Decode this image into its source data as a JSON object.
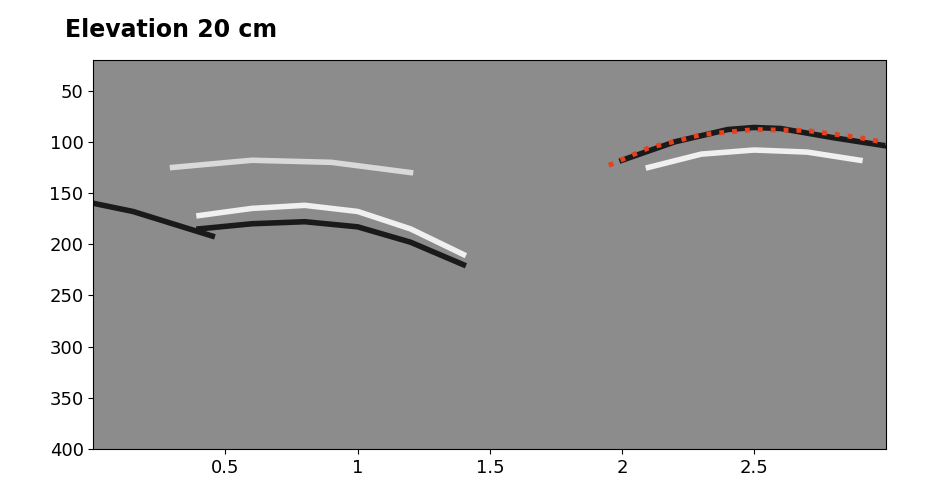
{
  "chart_data": {
    "type": "line",
    "title": "Elevation 20 cm",
    "xlim": [
      0,
      3.0
    ],
    "xticks": [
      0.5,
      1,
      1.5,
      2,
      2.5
    ],
    "ylim": [
      400,
      20
    ],
    "yticks": [
      50,
      100,
      150,
      200,
      250,
      300,
      350,
      400
    ],
    "color": "#8c8c8c",
    "series": [
      {
        "color": "#1a1a1a",
        "line_style": "solid",
        "x": [
          2.0,
          2.2,
          2.4,
          2.5,
          2.6,
          2.8,
          3.0
        ],
        "values": [
          118,
          100,
          88,
          86,
          87,
          96,
          104
        ]
      },
      {
        "color": "#f0f0f0",
        "line_style": "solid",
        "x": [
          2.1,
          2.3,
          2.5,
          2.7,
          2.9
        ],
        "values": [
          125,
          112,
          108,
          110,
          118
        ]
      },
      {
        "color": "#f0f0f0",
        "line_style": "solid",
        "x": [
          0.4,
          0.6,
          0.8,
          1.0,
          1.2,
          1.4
        ],
        "values": [
          172,
          165,
          162,
          168,
          185,
          210
        ]
      },
      {
        "color": "#1a1a1a",
        "line_style": "solid",
        "x": [
          0.4,
          0.6,
          0.8,
          1.0,
          1.2,
          1.4
        ],
        "values": [
          185,
          180,
          178,
          183,
          198,
          220
        ]
      },
      {
        "color": "#1a1a1a",
        "line_style": "solid",
        "x": [
          0.0,
          0.15,
          0.3,
          0.45
        ],
        "values": [
          160,
          168,
          180,
          192
        ]
      },
      {
        "color": "#d9d9d9",
        "line_style": "solid",
        "x": [
          0.3,
          0.6,
          0.9,
          1.2
        ],
        "values": [
          125,
          118,
          120,
          130
        ]
      },
      {
        "color": "#e8401c",
        "line_style": "dotted",
        "x": [
          1.95,
          2.1,
          2.3,
          2.5,
          2.7,
          2.9,
          3.0
        ],
        "values": [
          123,
          106,
          93,
          88,
          89,
          96,
          101
        ]
      }
    ]
  }
}
